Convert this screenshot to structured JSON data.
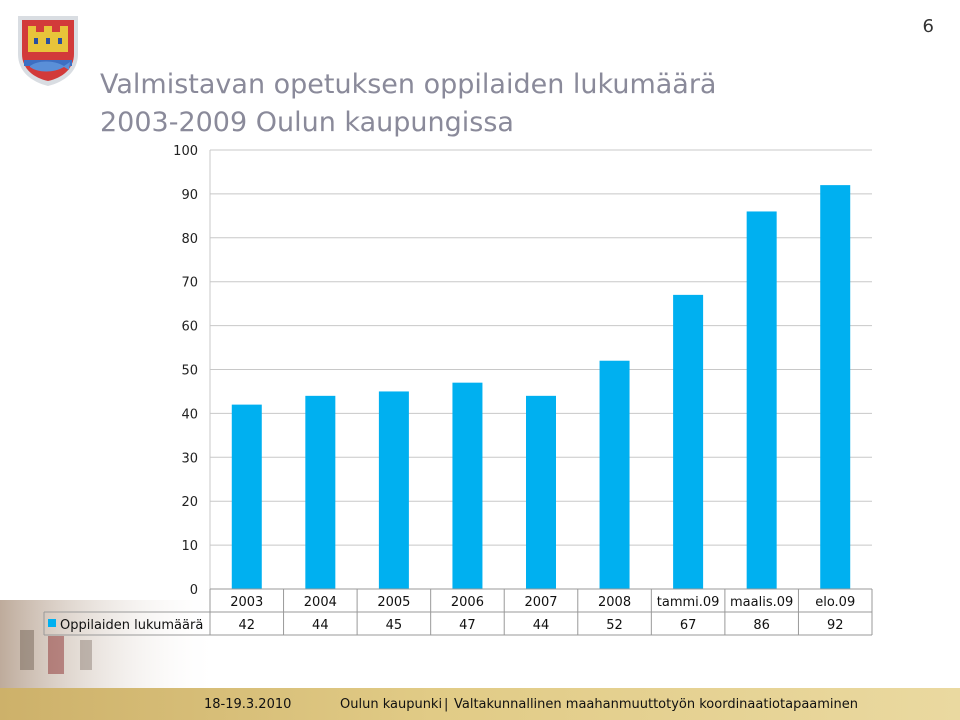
{
  "slide": {
    "number": "6",
    "title_line1": "Valmistavan opetuksen oppilaiden lukumäärä",
    "title_line2": "2003-2009 Oulun kaupungissa"
  },
  "footer": {
    "date": "18-19.3.2010",
    "org": "Oulun kaupunki",
    "separator": "|",
    "event": "Valtakunnallinen maahanmuuttotyön koordinaatiotapaaminen"
  },
  "colors": {
    "bar": "#00b0f0",
    "gridline": "#c8c8c8",
    "title": "#8a8a9a",
    "footer": "#dcc47e"
  },
  "icons": [
    "oulu-coat-of-arms-icon",
    "legend-square-icon"
  ],
  "chart_data": {
    "type": "bar",
    "title": "",
    "xlabel": "",
    "ylabel": "",
    "categories": [
      "2003",
      "2004",
      "2005",
      "2006",
      "2007",
      "2008",
      "tammi.09",
      "maalis.09",
      "elo.09"
    ],
    "series": [
      {
        "name": "Oppilaiden lukumäärä",
        "values": [
          42,
          44,
          45,
          47,
          44,
          52,
          67,
          86,
          92
        ]
      }
    ],
    "ylim": [
      0,
      100
    ],
    "yticks": [
      "0",
      "10",
      "20",
      "30",
      "40",
      "50",
      "60",
      "70",
      "80",
      "90",
      "100"
    ],
    "grid": true,
    "legend": "data-table",
    "data_table": true
  }
}
